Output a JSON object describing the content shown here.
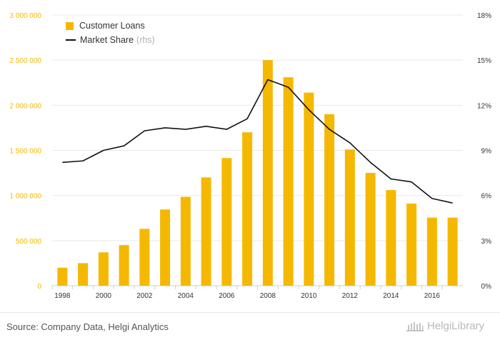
{
  "chart_data": {
    "type": "bar",
    "categories": [
      "1998",
      "1999",
      "2000",
      "2001",
      "2002",
      "2003",
      "2004",
      "2005",
      "2006",
      "2007",
      "2008",
      "2009",
      "2010",
      "2011",
      "2012",
      "2013",
      "2014",
      "2015",
      "2016",
      "2017"
    ],
    "series": [
      {
        "name": "Customer Loans",
        "type": "bar",
        "axis": "left",
        "color": "#f5b800",
        "values": [
          200000,
          250000,
          370000,
          450000,
          630000,
          845000,
          985000,
          1200000,
          1415000,
          1700000,
          2500000,
          2310000,
          2140000,
          1900000,
          1510000,
          1250000,
          1060000,
          910000,
          755000,
          755000
        ]
      },
      {
        "name": "Market Share",
        "name_suffix": "(rhs)",
        "type": "line",
        "axis": "right",
        "color": "#111111",
        "values": [
          8.2,
          8.3,
          9.0,
          9.3,
          10.3,
          10.5,
          10.4,
          10.6,
          10.4,
          11.1,
          13.7,
          13.2,
          11.7,
          10.4,
          9.5,
          8.2,
          7.1,
          6.9,
          5.8,
          5.5
        ]
      }
    ],
    "x_tick_labels": [
      "1998",
      "2000",
      "2002",
      "2004",
      "2006",
      "2008",
      "2010",
      "2012",
      "2014",
      "2016"
    ],
    "y_left": {
      "ylim": [
        0,
        3000000
      ],
      "ticks": [
        0,
        500000,
        1000000,
        1500000,
        2000000,
        2500000,
        3000000
      ],
      "tick_labels": [
        "0",
        "500 000",
        "1 000 000",
        "1 500 000",
        "2 000 000",
        "2 500 000",
        "3 000 000"
      ],
      "color": "#f5b800"
    },
    "y_right": {
      "ylim": [
        0,
        18
      ],
      "ticks": [
        0,
        3,
        6,
        9,
        12,
        15,
        18
      ],
      "tick_labels": [
        "0%",
        "3%",
        "6%",
        "9%",
        "12%",
        "15%",
        "18%"
      ]
    },
    "grid": true,
    "legend_position": "top-left"
  },
  "legend": {
    "items": [
      {
        "label": "Customer Loans"
      },
      {
        "label": "Market Share",
        "suffix": "(rhs)"
      }
    ]
  },
  "footer": {
    "source": "Source: Company Data, Helgi Analytics",
    "logo_text": "HelgiLibrary"
  }
}
